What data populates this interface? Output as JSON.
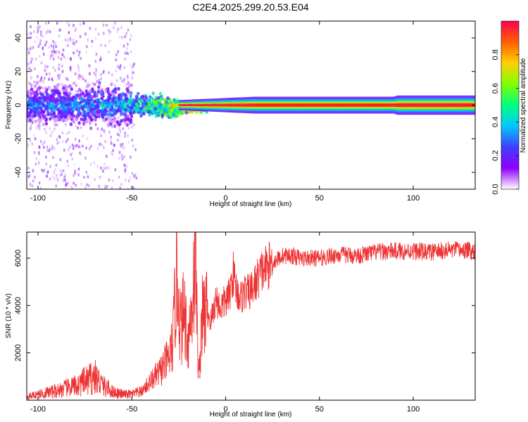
{
  "title": "C2E4.2025.299.20.53.E04",
  "colors": {
    "snr_line": "#ee3333",
    "spectrum_band": "#ee2222",
    "background": "#ffffff",
    "colormap": [
      "#ffffff",
      "#8f00ff",
      "#3f3fff",
      "#00c8ff",
      "#00ff80",
      "#80ff00",
      "#ffd000",
      "#ff6000",
      "#ff0050"
    ]
  },
  "chart_data": [
    {
      "type": "heatmap",
      "name": "spectrogram",
      "xlabel": "Height of straight line (km)",
      "ylabel": "Frequency (Hz)",
      "xlim": [
        -106,
        133
      ],
      "ylim": [
        -50,
        50
      ],
      "xticks": [
        -100,
        -50,
        0,
        50,
        100
      ],
      "xtick_labels": [
        "-100",
        "-50",
        "0",
        "50",
        "100"
      ],
      "yticks": [
        -40,
        -20,
        0,
        20,
        40
      ],
      "ytick_labels": [
        "-40",
        "-20",
        "0",
        "20",
        "40"
      ],
      "description_series": [
        {
          "name": "dominant-band-center",
          "x": [
            -106,
            -50,
            -25,
            0,
            50,
            100,
            133
          ],
          "values": [
            0,
            0,
            -2,
            0,
            0,
            0,
            0
          ]
        },
        {
          "name": "normalized-amplitude",
          "x": [
            -106,
            -60,
            -40,
            -20,
            0,
            15,
            50,
            100,
            133
          ],
          "values": [
            0.35,
            0.4,
            0.55,
            0.75,
            0.95,
            0.98,
            0.98,
            0.98,
            0.98
          ]
        }
      ],
      "colorbar": {
        "label": "Normalized spectral amplitude",
        "ticks": [
          0.0,
          0.2,
          0.4,
          0.6,
          0.8
        ],
        "tick_labels": [
          "0.0",
          "0.2",
          "0.4",
          "0.6",
          "0.8"
        ],
        "range": [
          0,
          1
        ]
      }
    },
    {
      "type": "line",
      "name": "snr",
      "xlabel": "Height of straight line (km)",
      "ylabel": "SNR (10 * v/v)",
      "xlim": [
        -106,
        133
      ],
      "ylim": [
        0,
        7100
      ],
      "xticks": [
        -100,
        -50,
        0,
        50,
        100
      ],
      "xtick_labels": [
        "-100",
        "-50",
        "0",
        "50",
        "100"
      ],
      "yticks": [
        2000,
        4000,
        6000
      ],
      "ytick_labels": [
        "2000",
        "4000",
        "6000"
      ],
      "series": [
        {
          "name": "SNR",
          "x": [
            -106,
            -100,
            -90,
            -80,
            -72,
            -70,
            -65,
            -60,
            -55,
            -50,
            -45,
            -40,
            -35,
            -30,
            -28,
            -26,
            -24,
            -22,
            -20,
            -18,
            -16,
            -15,
            -14,
            -13,
            -12,
            -10,
            -8,
            -5,
            -3,
            0,
            2,
            4,
            6,
            8,
            10,
            12,
            15,
            18,
            20,
            25,
            30,
            35,
            40,
            50,
            60,
            70,
            80,
            90,
            100,
            110,
            120,
            133
          ],
          "values": [
            150,
            250,
            400,
            600,
            900,
            1000,
            600,
            350,
            250,
            250,
            350,
            800,
            1200,
            1800,
            2500,
            5600,
            3000,
            3800,
            2500,
            3900,
            6800,
            2200,
            1000,
            3300,
            3500,
            3800,
            3300,
            4300,
            3900,
            4200,
            4400,
            5400,
            4600,
            4300,
            4600,
            4500,
            4800,
            5300,
            5500,
            5800,
            6100,
            6100,
            6000,
            6000,
            6150,
            6100,
            6250,
            6300,
            6300,
            6250,
            6350,
            6300
          ]
        }
      ]
    }
  ]
}
